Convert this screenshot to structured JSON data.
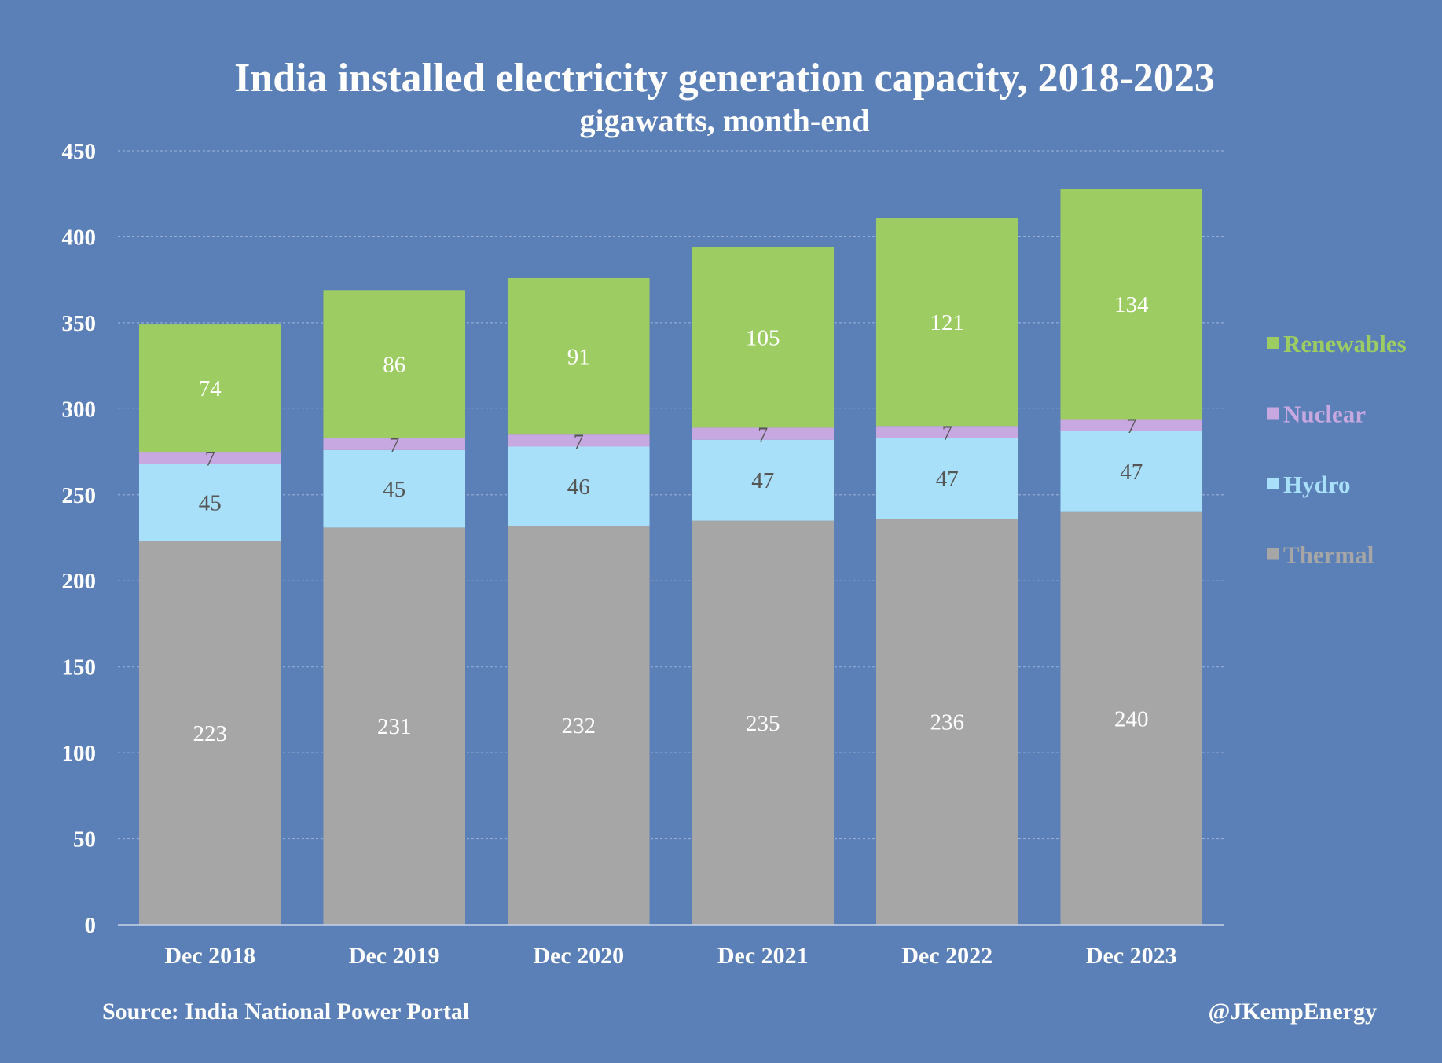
{
  "chart_data": {
    "type": "bar",
    "stacked": true,
    "title": "India installed electricity generation capacity, 2018-2023",
    "subtitle": "gigawatts, month-end",
    "categories": [
      "Dec 2018",
      "Dec 2019",
      "Dec 2020",
      "Dec 2021",
      "Dec 2022",
      "Dec 2023"
    ],
    "ylim": [
      0,
      450
    ],
    "yticks": [
      0,
      50,
      100,
      150,
      200,
      250,
      300,
      350,
      400,
      450
    ],
    "grid": true,
    "legend_position": "right",
    "series": [
      {
        "name": "Thermal",
        "color": "#a6a6a6",
        "label_color": "#ffffff",
        "values": [
          223,
          231,
          232,
          235,
          236,
          240
        ]
      },
      {
        "name": "Hydro",
        "color": "#a8e0fa",
        "label_color": "#555555",
        "values": [
          45,
          45,
          46,
          47,
          47,
          47
        ]
      },
      {
        "name": "Nuclear",
        "color": "#c8a8e0",
        "label_color": "#555555",
        "values": [
          7,
          7,
          7,
          7,
          7,
          7
        ]
      },
      {
        "name": "Renewables",
        "color": "#9dcd62",
        "label_color": "#ffffff",
        "values": [
          74,
          86,
          91,
          105,
          121,
          134
        ]
      }
    ],
    "legend_order": [
      "Renewables",
      "Nuclear",
      "Hydro",
      "Thermal"
    ]
  },
  "footer": {
    "source": "Source: India National Power Portal",
    "handle": "@JKempEnergy"
  }
}
